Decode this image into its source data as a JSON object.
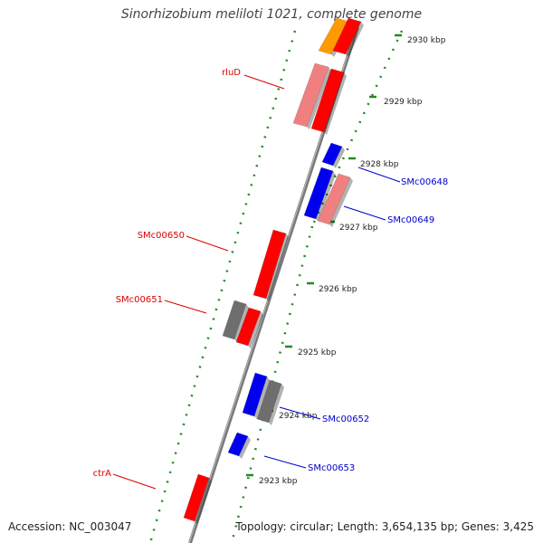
{
  "title": "Sinorhizobium meliloti 1021, complete genome",
  "accession_text": "Accession: NC_003047",
  "topology_text": "Topology: circular; Length: 3,654,135 bp; Genes: 3,425",
  "colors": {
    "forward_cds": "#ff0000",
    "forward_light": "#f08080",
    "reverse_cds": "#0000ee",
    "orange": "#ff9900",
    "grey": "#6e6e6e",
    "backbone": "#888888",
    "ticks": "#228b22",
    "label_red": "#dd0000",
    "label_blue": "#0000cc"
  },
  "scale": {
    "ticks": [
      {
        "label": "2930 kbp"
      },
      {
        "label": "2929 kbp"
      },
      {
        "label": "2928 kbp"
      },
      {
        "label": "2927 kbp"
      },
      {
        "label": "2926 kbp"
      },
      {
        "label": "2925 kbp"
      },
      {
        "label": "2924 kbp"
      },
      {
        "label": "2923 kbp"
      }
    ]
  },
  "gene_labels": [
    {
      "name": "rluD",
      "color": "red"
    },
    {
      "name": "SMc00650",
      "color": "red"
    },
    {
      "name": "SMc00651",
      "color": "red"
    },
    {
      "name": "ctrA",
      "color": "red"
    },
    {
      "name": "SMc00648",
      "color": "blue"
    },
    {
      "name": "SMc00649",
      "color": "blue"
    },
    {
      "name": "SMc00652",
      "color": "blue"
    },
    {
      "name": "SMc00653",
      "color": "blue"
    }
  ]
}
